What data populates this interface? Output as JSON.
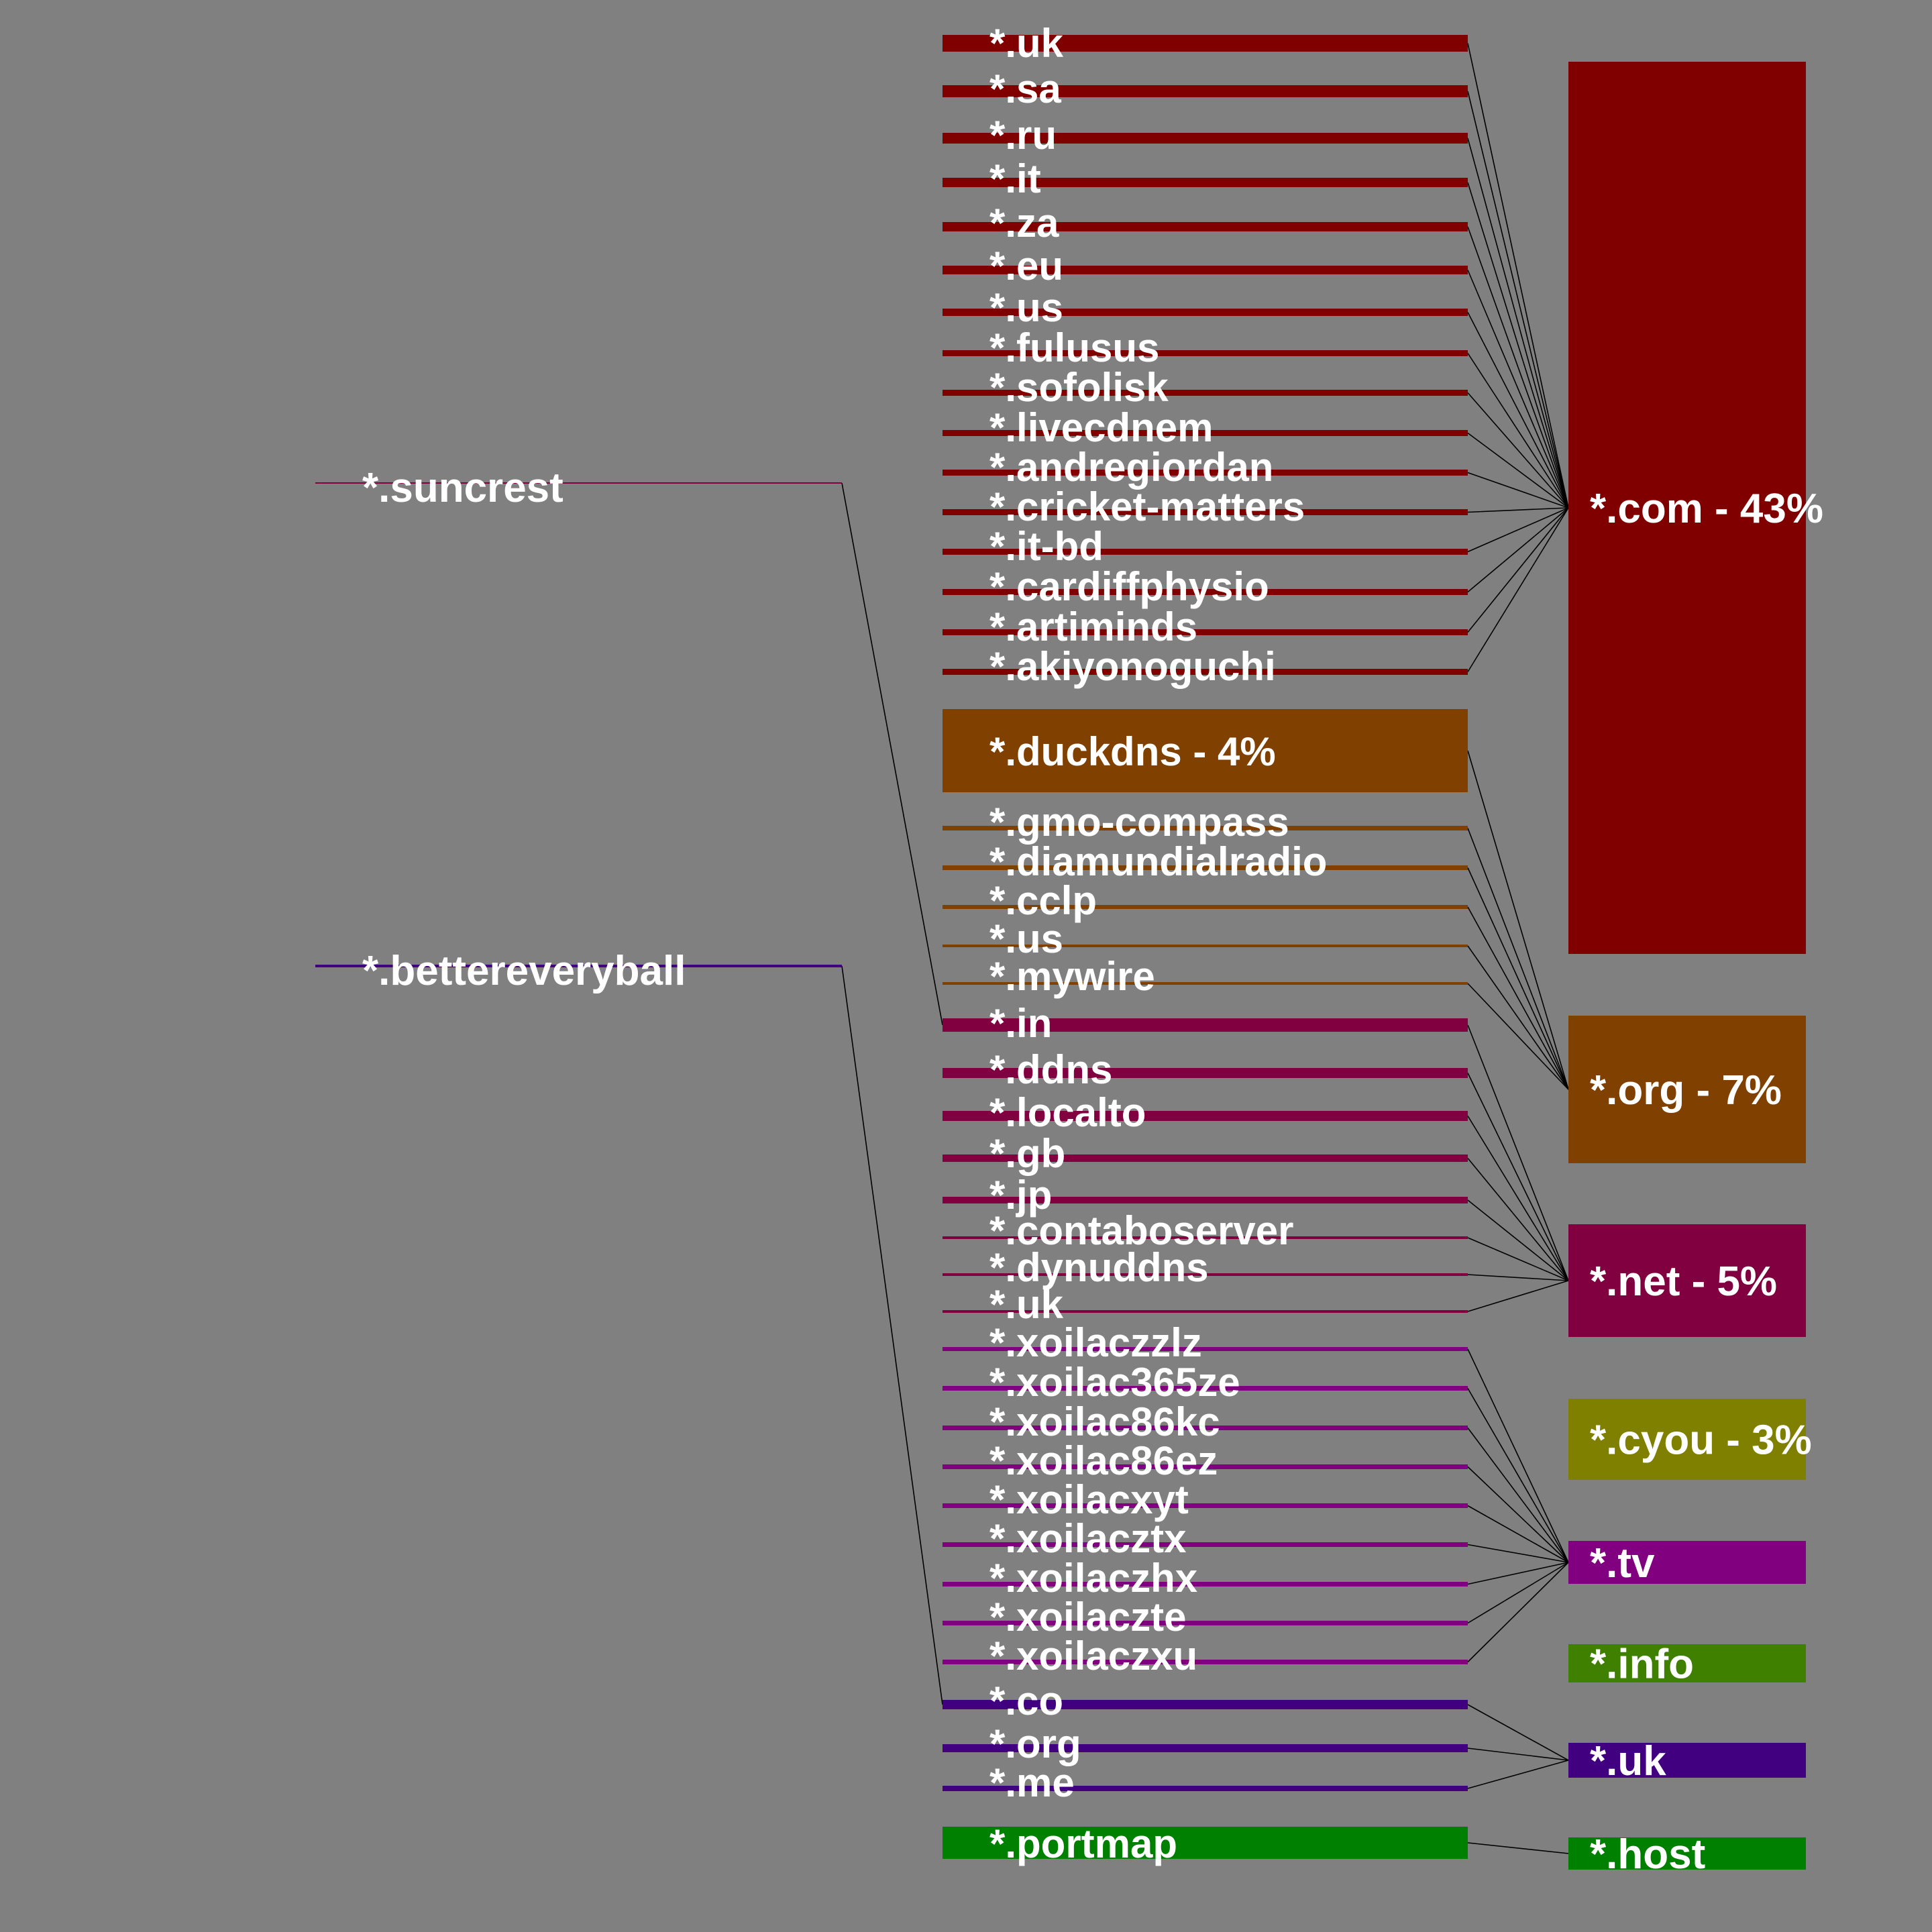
{
  "colors": {
    "background": "#808080",
    "com": "#800000",
    "org": "#804000",
    "net": "#800040",
    "cyou": "#808000",
    "tv": "#800080",
    "info": "#408000",
    "uk": "#400080",
    "host": "#008000",
    "connector": "#000000",
    "text": "#ffffff"
  },
  "level1": [
    {
      "label": "*.suncrest",
      "color": "#800040"
    },
    {
      "label": "*.bettereveryball",
      "color": "#400080"
    }
  ],
  "level2": [
    {
      "label": "*.uk",
      "group": "com",
      "weight": 3
    },
    {
      "label": "*.sa",
      "group": "com",
      "weight": 3
    },
    {
      "label": "*.ru",
      "group": "com",
      "weight": 3
    },
    {
      "label": "*.it",
      "group": "com",
      "weight": 3
    },
    {
      "label": "*.za",
      "group": "com",
      "weight": 3
    },
    {
      "label": "*.eu",
      "group": "com",
      "weight": 3
    },
    {
      "label": "*.us",
      "group": "com",
      "weight": 2
    },
    {
      "label": "*.fulusus",
      "group": "com",
      "weight": 2
    },
    {
      "label": "*.sofolisk",
      "group": "com",
      "weight": 2
    },
    {
      "label": "*.livecdnem",
      "group": "com",
      "weight": 2
    },
    {
      "label": "*.andregiordan",
      "group": "com",
      "weight": 2
    },
    {
      "label": "*.cricket-matters",
      "group": "com",
      "weight": 2
    },
    {
      "label": "*.it-bd",
      "group": "com",
      "weight": 2
    },
    {
      "label": "*.cardiffphysio",
      "group": "com",
      "weight": 2
    },
    {
      "label": "*.artiminds",
      "group": "com",
      "weight": 2
    },
    {
      "label": "*.akiyonoguchi",
      "group": "com",
      "weight": 2
    },
    {
      "label": "*.duckdns - 4%",
      "group": "org",
      "weight": 20
    },
    {
      "label": "*.gmo-compass",
      "group": "org",
      "weight": 2
    },
    {
      "label": "*.diamundialradio",
      "group": "org",
      "weight": 2
    },
    {
      "label": "*.cclp",
      "group": "org",
      "weight": 2
    },
    {
      "label": "*.us",
      "group": "org",
      "weight": 1
    },
    {
      "label": "*.mywire",
      "group": "org",
      "weight": 1
    },
    {
      "label": "*.in",
      "group": "net",
      "weight": 4
    },
    {
      "label": "*.ddns",
      "group": "net",
      "weight": 3
    },
    {
      "label": "*.localto",
      "group": "net",
      "weight": 3
    },
    {
      "label": "*.gb",
      "group": "net",
      "weight": 2
    },
    {
      "label": "*.jp",
      "group": "net",
      "weight": 2
    },
    {
      "label": "*.contaboserver",
      "group": "net",
      "weight": 1
    },
    {
      "label": "*.dynuddns",
      "group": "net",
      "weight": 1
    },
    {
      "label": "*.uk",
      "group": "net",
      "weight": 1
    },
    {
      "label": "*.xoilaczzlz",
      "group": "tv",
      "weight": 2
    },
    {
      "label": "*.xoilac365ze",
      "group": "tv",
      "weight": 2
    },
    {
      "label": "*.xoilac86kc",
      "group": "tv",
      "weight": 2
    },
    {
      "label": "*.xoilac86ez",
      "group": "tv",
      "weight": 2
    },
    {
      "label": "*.xoilacxyt",
      "group": "tv",
      "weight": 2
    },
    {
      "label": "*.xoilacztx",
      "group": "tv",
      "weight": 2
    },
    {
      "label": "*.xoilaczhx",
      "group": "tv",
      "weight": 2
    },
    {
      "label": "*.xoilaczte",
      "group": "tv",
      "weight": 2
    },
    {
      "label": "*.xoilaczxu",
      "group": "tv",
      "weight": 2
    },
    {
      "label": "*.co",
      "group": "uk",
      "weight": 3
    },
    {
      "label": "*.org",
      "group": "uk",
      "weight": 3
    },
    {
      "label": "*.me",
      "group": "uk",
      "weight": 2
    },
    {
      "label": "*.portmap",
      "group": "host",
      "weight": 8
    }
  ],
  "level3": [
    {
      "key": "com",
      "label": "*.com - 43%",
      "weight": 215
    },
    {
      "key": "org",
      "label": "*.org - 7%",
      "weight": 35
    },
    {
      "key": "net",
      "label": "*.net - 5%",
      "weight": 27
    },
    {
      "key": "cyou",
      "label": "*.cyou - 3%",
      "weight": 19
    },
    {
      "key": "tv",
      "label": "*.tv",
      "weight": 10
    },
    {
      "key": "info",
      "label": "*.info",
      "weight": 9
    },
    {
      "key": "uk",
      "label": "*.uk",
      "weight": 8
    },
    {
      "key": "host",
      "label": "*.host",
      "weight": 8
    }
  ],
  "links_level1_to_level2": [
    {
      "from": 0,
      "to": 22
    },
    {
      "from": 1,
      "to": 39
    }
  ]
}
